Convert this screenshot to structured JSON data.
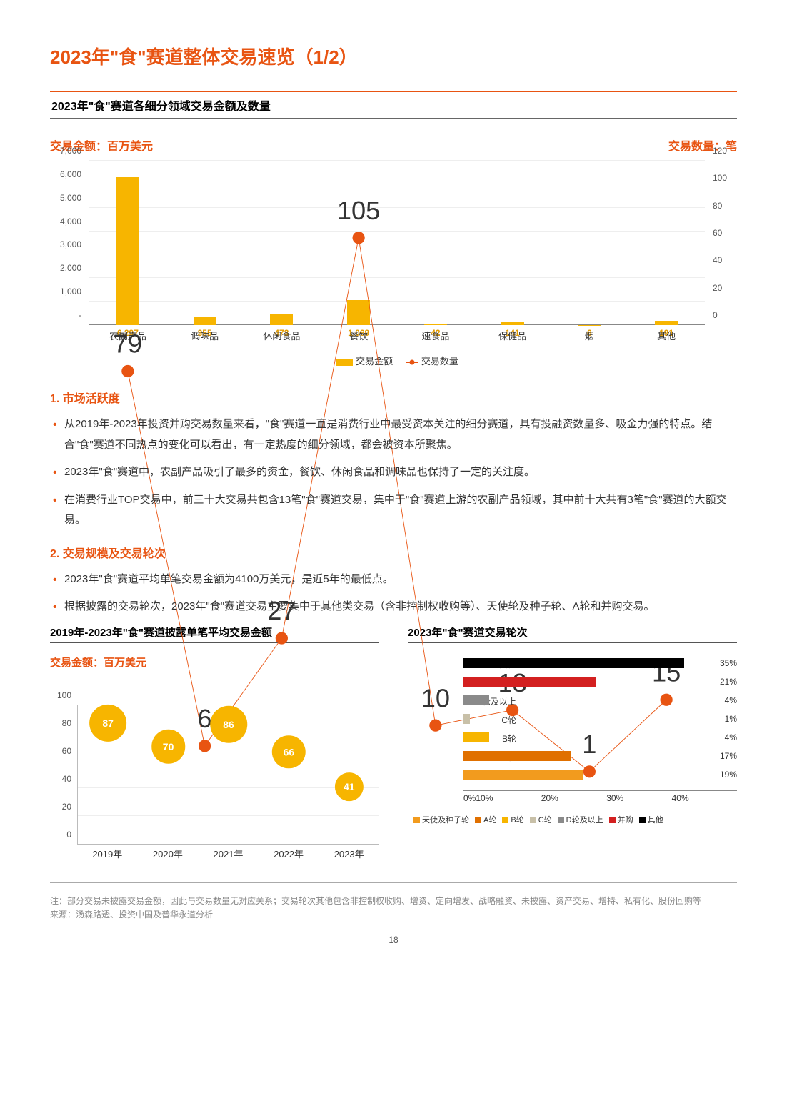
{
  "page_title_prefix": "2023年",
  "page_title_quote_open": "\"",
  "page_title_word": "食",
  "page_title_quote_close": "\"",
  "page_title_suffix": "赛道整体交易速览（1/2）",
  "subtitle": "2023年\"食\"赛道各细分领域交易金额及数量",
  "y_left_label": "交易金额：百万美元",
  "y_right_label": "交易数量：笔",
  "combo_chart": {
    "categories": [
      "农副产品",
      "调味品",
      "休闲食品",
      "餐饮",
      "速食品",
      "保健品",
      "烟",
      "其他"
    ],
    "bar_values": [
      6297,
      355,
      473,
      1069,
      42,
      141,
      6,
      191
    ],
    "bar_max": 7000,
    "bar_color": "#f7b500",
    "line_values": [
      79,
      6,
      27,
      105,
      10,
      13,
      1,
      15
    ],
    "line_max": 120,
    "line_color": "#e85412",
    "y_left_ticks": [
      "-",
      "1,000",
      "2,000",
      "3,000",
      "4,000",
      "5,000",
      "6,000",
      "7,000"
    ],
    "y_right_ticks": [
      "0",
      "20",
      "40",
      "60",
      "80",
      "100",
      "120"
    ],
    "legend_bar": "交易金额",
    "legend_line": "交易数量"
  },
  "sections": [
    {
      "heading": "1. 市场活跃度",
      "bullets": [
        "从2019年-2023年投资并购交易数量来看，\"食\"赛道一直是消费行业中最受资本关注的细分赛道，具有投融资数量多、吸金力强的特点。结合\"食\"赛道不同热点的变化可以看出，有一定热度的细分领域，都会被资本所聚焦。",
        "2023年\"食\"赛道中，农副产品吸引了最多的资金，餐饮、休闲食品和调味品也保持了一定的关注度。",
        "在消费行业TOP交易中，前三十大交易共包含13笔\"食\"赛道交易，集中于\"食\"赛道上游的农副产品领域，其中前十大共有3笔\"食\"赛道的大额交易。"
      ]
    },
    {
      "heading": "2. 交易规模及交易轮次",
      "bullets": [
        "2023年\"食\"赛道平均单笔交易金额为4100万美元，是近5年的最低点。",
        "根据披露的交易轮次，2023年\"食\"赛道交易主要集中于其他类交易（含非控制权收购等）、天使轮及种子轮、A轮和并购交易。"
      ]
    }
  ],
  "bubble": {
    "title": "2019年-2023年\"食\"赛道披露单笔平均交易金额",
    "unit_label": "交易金额：百万美元",
    "y_ticks": [
      "0",
      "20",
      "40",
      "60",
      "80",
      "100"
    ],
    "y_max": 100,
    "years": [
      "2019年",
      "2020年",
      "2021年",
      "2022年",
      "2023年"
    ],
    "values": [
      87,
      70,
      86,
      66,
      41
    ],
    "color": "#f7b500"
  },
  "hbar": {
    "title": "2023年\"食\"赛道交易轮次",
    "x_ticks": [
      "0%",
      "10%",
      "20%",
      "30%",
      "40%"
    ],
    "x_max": 40,
    "rows": [
      {
        "label": "其他",
        "value": 35,
        "color": "#000000"
      },
      {
        "label": "并购",
        "value": 21,
        "color": "#d32020"
      },
      {
        "label": "D轮及以上",
        "value": 4,
        "color": "#8a8a8a"
      },
      {
        "label": "C轮",
        "value": 1,
        "color": "#c8c0a8"
      },
      {
        "label": "B轮",
        "value": 4,
        "color": "#f7b500"
      },
      {
        "label": "A轮",
        "value": 17,
        "color": "#e07000"
      },
      {
        "label": "天使及种子轮",
        "value": 19,
        "color": "#f29b1e"
      }
    ],
    "legend": [
      {
        "label": "天使及种子轮",
        "color": "#f29b1e"
      },
      {
        "label": "A轮",
        "color": "#e07000"
      },
      {
        "label": "B轮",
        "color": "#f7b500"
      },
      {
        "label": "C轮",
        "color": "#c8c0a8"
      },
      {
        "label": "D轮及以上",
        "color": "#8a8a8a"
      },
      {
        "label": "并购",
        "color": "#d32020"
      },
      {
        "label": "其他",
        "color": "#000000"
      }
    ]
  },
  "footnote1": "注：部分交易未披露交易金额，因此与交易数量无对应关系；交易轮次其他包含非控制权收购、增资、定向增发、战略融资、未披露、资产交易、增持、私有化、股份回购等",
  "footnote2": "来源：汤森路透、投资中国及普华永道分析",
  "page_number": "18"
}
